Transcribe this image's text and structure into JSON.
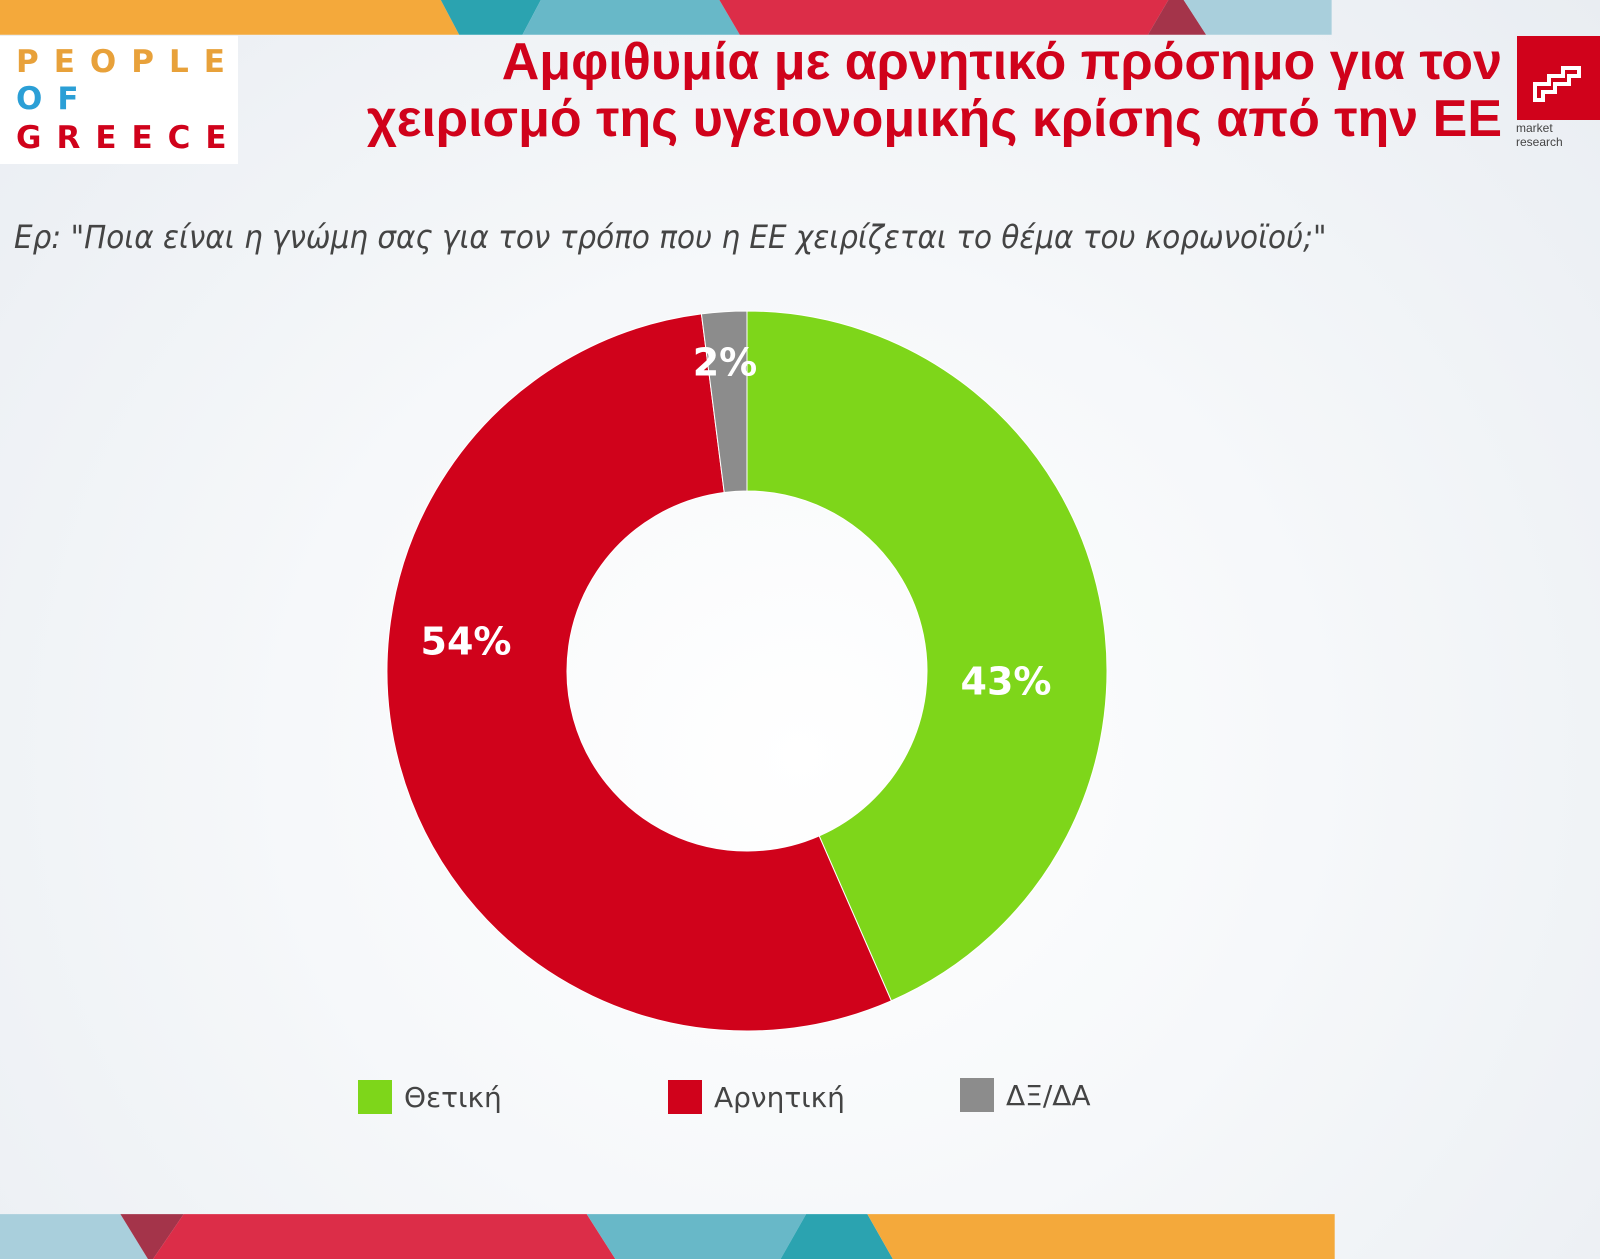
{
  "logo": {
    "lines": [
      "PEOPLE",
      "OF",
      "GREECE"
    ]
  },
  "header": {
    "title_line1": "Αμφιθυμία με αρνητικό πρόσημο για τον",
    "title_line2": "χειρισμό της υγειονομικής κρίσης από την ΕΕ",
    "brand_caption": "market research"
  },
  "question": "Ερ: \"Ποια είναι η γνώμη σας για τον τρόπο που η ΕΕ χειρίζεται το θέμα του κορωνοϊού;\"",
  "chart_data": {
    "type": "pie",
    "donut": true,
    "categories": [
      "Θετική",
      "Αρνητική",
      "ΔΞ/ΔΑ"
    ],
    "values": [
      43,
      54,
      2
    ],
    "data_labels": [
      "43%",
      "54%",
      "2%"
    ],
    "colors": [
      "#7ed61a",
      "#d0021b",
      "#8c8c8c"
    ],
    "legend_position": "bottom"
  }
}
